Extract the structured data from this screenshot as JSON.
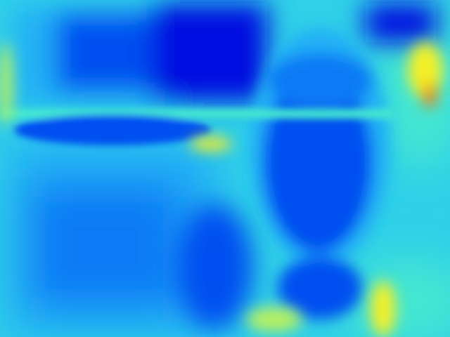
{
  "image": {
    "kind": "colormapped-heatmap",
    "colormap": "jet",
    "colors": {
      "deep_blue": "#0010e0",
      "blue": "#0050f0",
      "mid_blue": "#0a7af5",
      "light_blue": "#22b0f5",
      "cyan": "#2fd0e8",
      "aqua": "#45e8d0",
      "green_yellow": "#b8f060",
      "yellow": "#f4f028",
      "orange": "#f09018",
      "red": "#e83010"
    }
  }
}
